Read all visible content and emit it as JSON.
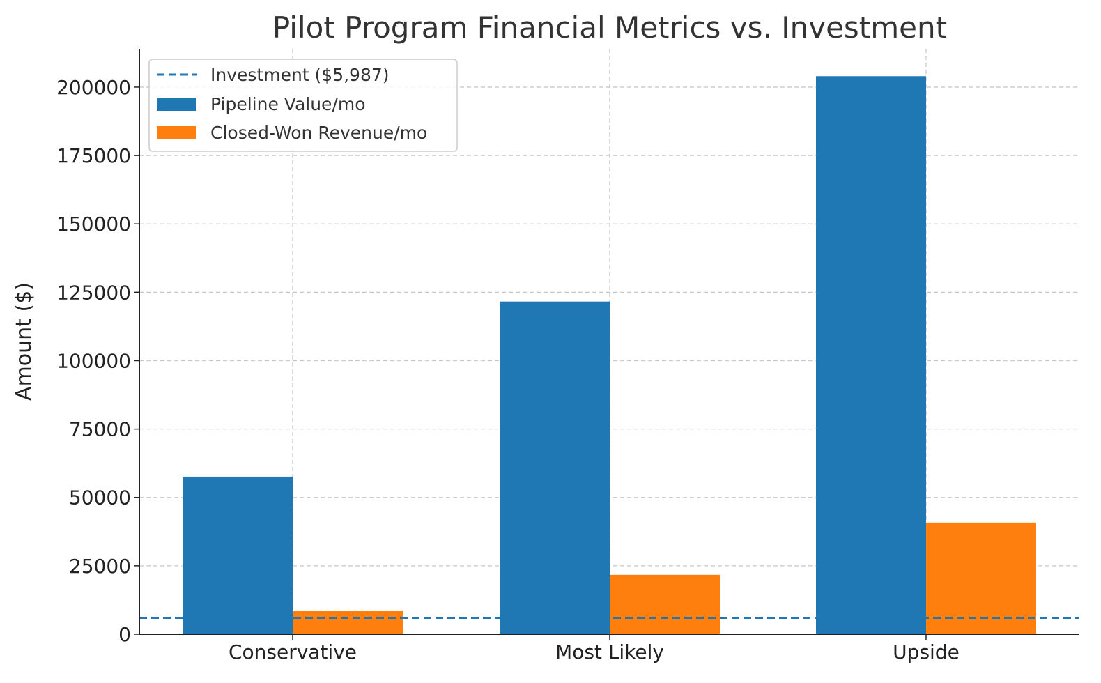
{
  "chart_data": {
    "type": "bar",
    "title": "Pilot Program Financial Metrics vs. Investment",
    "xlabel": "",
    "ylabel": "Amount ($)",
    "categories": [
      "Conservative",
      "Most Likely",
      "Upside"
    ],
    "series": [
      {
        "name": "Pipeline Value/mo",
        "values": [
          57600,
          121600,
          204000
        ],
        "color": "#1f77b4"
      },
      {
        "name": "Closed-Won Revenue/mo",
        "values": [
          8600,
          21700,
          40800
        ],
        "color": "#ff7f0e"
      }
    ],
    "reference_line": {
      "name": "Investment ($5,987)",
      "value": 5987,
      "color": "#1f77b4",
      "style": "dashed"
    },
    "ylim": [
      0,
      214000
    ],
    "yticks": [
      0,
      25000,
      50000,
      75000,
      100000,
      125000,
      150000,
      175000,
      200000
    ],
    "grid": true,
    "legend_position": "top-left"
  }
}
